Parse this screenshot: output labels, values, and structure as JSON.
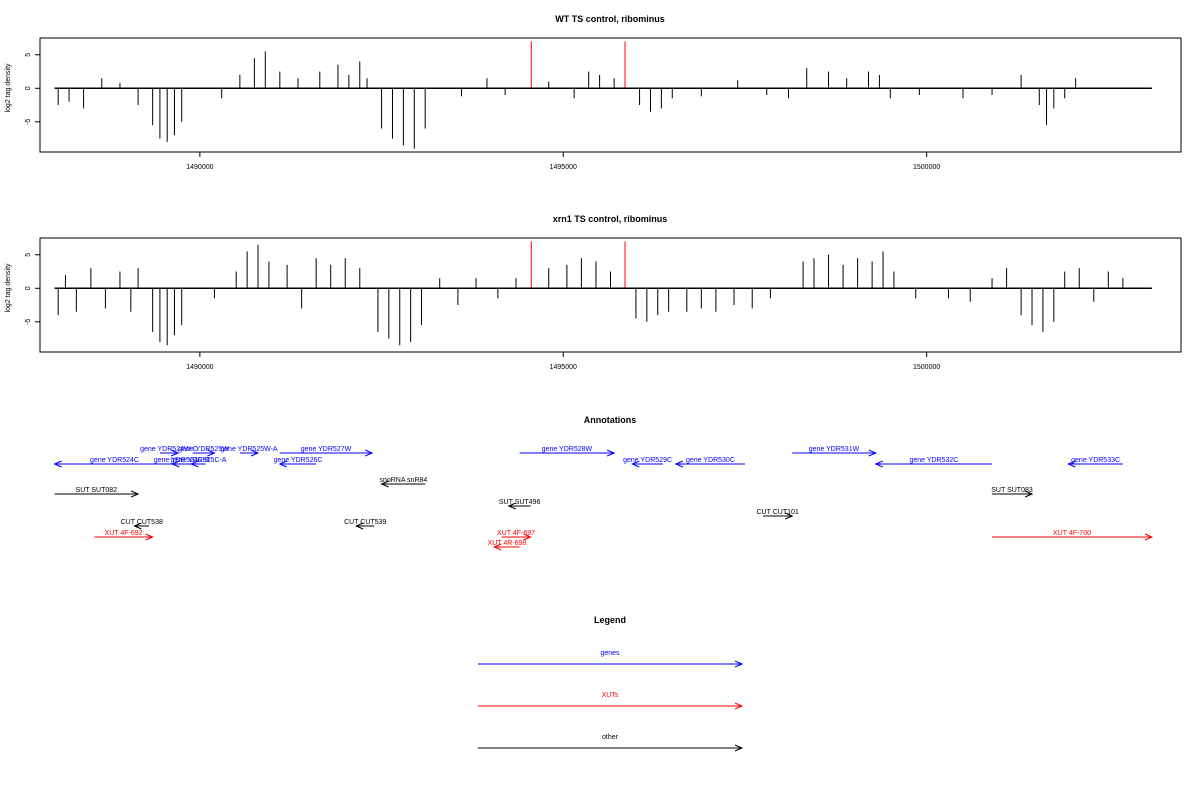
{
  "chart_data": [
    {
      "type": "bar",
      "title": "WT TS control, ribominus",
      "ylabel": "log2 tag density",
      "xlabel": "",
      "xlim": [
        1487800,
        1503500
      ],
      "ylim": [
        -9.5,
        7.5
      ],
      "x_ticks": [
        1490000,
        1495000,
        1500000
      ],
      "x_tick_labels": [
        "1490000",
        "1495000",
        "1500000"
      ],
      "y_ticks": [
        -5,
        0,
        5
      ],
      "y_tick_labels": [
        "-5",
        "0",
        "5"
      ],
      "series": [
        {
          "color": "#000000",
          "values": [
            [
              1488050,
              -2.5
            ],
            [
              1488200,
              -2.0
            ],
            [
              1488400,
              -3.0
            ],
            [
              1488650,
              1.5
            ],
            [
              1488900,
              0.8
            ],
            [
              1489150,
              -2.5
            ],
            [
              1489350,
              -5.5
            ],
            [
              1489450,
              -7.5
            ],
            [
              1489550,
              -8.0
            ],
            [
              1489650,
              -7.0
            ],
            [
              1489750,
              -5.0
            ],
            [
              1490300,
              -1.5
            ],
            [
              1490550,
              2.0
            ],
            [
              1490750,
              4.5
            ],
            [
              1490900,
              5.5
            ],
            [
              1491100,
              2.5
            ],
            [
              1491350,
              1.5
            ],
            [
              1491650,
              2.5
            ],
            [
              1491900,
              3.5
            ],
            [
              1492050,
              2.0
            ],
            [
              1492200,
              4.0
            ],
            [
              1492300,
              1.5
            ],
            [
              1492500,
              -6.0
            ],
            [
              1492650,
              -7.5
            ],
            [
              1492800,
              -8.5
            ],
            [
              1492950,
              -9.0
            ],
            [
              1493100,
              -6.0
            ],
            [
              1493600,
              -1.2
            ],
            [
              1493950,
              1.5
            ],
            [
              1494200,
              -1.0
            ],
            [
              1494800,
              1.0
            ],
            [
              1495150,
              -1.5
            ],
            [
              1495350,
              2.5
            ],
            [
              1495500,
              2.0
            ],
            [
              1495700,
              1.5
            ],
            [
              1496050,
              -2.5
            ],
            [
              1496200,
              -3.5
            ],
            [
              1496350,
              -3.0
            ],
            [
              1496500,
              -1.5
            ],
            [
              1496900,
              -1.2
            ],
            [
              1497400,
              1.2
            ],
            [
              1497800,
              -1.0
            ],
            [
              1498100,
              -1.5
            ],
            [
              1498350,
              3.0
            ],
            [
              1498650,
              2.5
            ],
            [
              1498900,
              1.5
            ],
            [
              1499200,
              2.5
            ],
            [
              1499350,
              2.0
            ],
            [
              1499500,
              -1.5
            ],
            [
              1499900,
              -1.0
            ],
            [
              1500500,
              -1.5
            ],
            [
              1500900,
              -1.0
            ],
            [
              1501300,
              2.0
            ],
            [
              1501550,
              -2.5
            ],
            [
              1501650,
              -5.5
            ],
            [
              1501750,
              -3.0
            ],
            [
              1501900,
              -1.5
            ],
            [
              1502050,
              1.5
            ]
          ]
        },
        {
          "color": "#ff0000",
          "values": [
            [
              1494560,
              7.0
            ],
            [
              1495850,
              7.0
            ]
          ]
        }
      ]
    },
    {
      "type": "bar",
      "title": "xrn1 TS control, ribominus",
      "ylabel": "log2 tag density",
      "xlabel": "",
      "xlim": [
        1487800,
        1503500
      ],
      "ylim": [
        -9.5,
        7.5
      ],
      "x_ticks": [
        1490000,
        1495000,
        1500000
      ],
      "x_tick_labels": [
        "1490000",
        "1495000",
        "1500000"
      ],
      "y_ticks": [
        -5,
        0,
        5
      ],
      "y_tick_labels": [
        "-5",
        "0",
        "5"
      ],
      "series": [
        {
          "color": "#000000",
          "values": [
            [
              1488050,
              -4.0
            ],
            [
              1488150,
              2.0
            ],
            [
              1488300,
              -3.5
            ],
            [
              1488500,
              3.0
            ],
            [
              1488700,
              -3.0
            ],
            [
              1488900,
              2.5
            ],
            [
              1489050,
              -3.5
            ],
            [
              1489150,
              3.0
            ],
            [
              1489350,
              -6.5
            ],
            [
              1489450,
              -8.0
            ],
            [
              1489550,
              -8.5
            ],
            [
              1489650,
              -7.0
            ],
            [
              1489750,
              -5.5
            ],
            [
              1490200,
              -1.5
            ],
            [
              1490500,
              2.5
            ],
            [
              1490650,
              5.5
            ],
            [
              1490800,
              6.5
            ],
            [
              1490950,
              4.0
            ],
            [
              1491200,
              3.5
            ],
            [
              1491400,
              -3.0
            ],
            [
              1491600,
              4.5
            ],
            [
              1491800,
              3.5
            ],
            [
              1492000,
              4.5
            ],
            [
              1492200,
              3.0
            ],
            [
              1492450,
              -6.5
            ],
            [
              1492600,
              -7.5
            ],
            [
              1492750,
              -8.5
            ],
            [
              1492900,
              -8.0
            ],
            [
              1493050,
              -5.5
            ],
            [
              1493300,
              1.5
            ],
            [
              1493550,
              -2.5
            ],
            [
              1493800,
              1.5
            ],
            [
              1494100,
              -1.5
            ],
            [
              1494350,
              1.5
            ],
            [
              1494800,
              3.0
            ],
            [
              1495050,
              3.5
            ],
            [
              1495250,
              4.5
            ],
            [
              1495450,
              4.0
            ],
            [
              1495650,
              2.5
            ],
            [
              1496000,
              -4.5
            ],
            [
              1496150,
              -5.0
            ],
            [
              1496300,
              -4.0
            ],
            [
              1496450,
              -3.5
            ],
            [
              1496700,
              -3.5
            ],
            [
              1496900,
              -3.0
            ],
            [
              1497100,
              -3.5
            ],
            [
              1497350,
              -2.5
            ],
            [
              1497600,
              -3.0
            ],
            [
              1497850,
              -1.5
            ],
            [
              1498300,
              4.0
            ],
            [
              1498450,
              4.5
            ],
            [
              1498650,
              5.0
            ],
            [
              1498850,
              3.5
            ],
            [
              1499050,
              4.5
            ],
            [
              1499250,
              4.0
            ],
            [
              1499400,
              5.5
            ],
            [
              1499550,
              2.5
            ],
            [
              1499850,
              -1.5
            ],
            [
              1500300,
              -1.5
            ],
            [
              1500600,
              -2.0
            ],
            [
              1500900,
              1.5
            ],
            [
              1501100,
              3.0
            ],
            [
              1501300,
              -4.0
            ],
            [
              1501450,
              -5.5
            ],
            [
              1501600,
              -6.5
            ],
            [
              1501750,
              -5.0
            ],
            [
              1501900,
              2.5
            ],
            [
              1502100,
              3.0
            ],
            [
              1502300,
              -2.0
            ],
            [
              1502500,
              2.5
            ],
            [
              1502700,
              1.5
            ]
          ]
        },
        {
          "color": "#ff0000",
          "values": [
            [
              1494560,
              7.0
            ],
            [
              1495850,
              7.0
            ]
          ]
        }
      ]
    }
  ],
  "annotations": {
    "title": "Annotations",
    "colors": {
      "genes": "#0000ff",
      "XUTs": "#ff0000",
      "other": "#000000"
    },
    "features": [
      {
        "label": "gene YDR524C",
        "class": "genes",
        "start": 1488000,
        "end": 1489650,
        "strand": "-",
        "row": 1
      },
      {
        "label": "gene YDR524W-C",
        "class": "genes",
        "start": 1489450,
        "end": 1489700,
        "strand": "+",
        "row": 0
      },
      {
        "label": "gene YDR524C-B",
        "class": "genes",
        "start": 1489620,
        "end": 1489880,
        "strand": "-",
        "row": 1
      },
      {
        "label": "gene YDR525W",
        "class": "genes",
        "start": 1489900,
        "end": 1490200,
        "strand": "+",
        "row": 0
      },
      {
        "label": "gene YDR525C-A",
        "class": "genes",
        "start": 1489880,
        "end": 1490080,
        "strand": "-",
        "row": 1
      },
      {
        "label": "gene YDR525W-A",
        "class": "genes",
        "start": 1490550,
        "end": 1490800,
        "strand": "+",
        "row": 0
      },
      {
        "label": "gene YDR526C",
        "class": "genes",
        "start": 1491100,
        "end": 1491600,
        "strand": "-",
        "row": 1
      },
      {
        "label": "gene YDR527W",
        "class": "genes",
        "start": 1491100,
        "end": 1492370,
        "strand": "+",
        "row": 0
      },
      {
        "label": "gene YDR528W",
        "class": "genes",
        "start": 1494400,
        "end": 1495700,
        "strand": "+",
        "row": 0
      },
      {
        "label": "gene YDR529C",
        "class": "genes",
        "start": 1495950,
        "end": 1496370,
        "strand": "-",
        "row": 1
      },
      {
        "label": "gene YDR530C",
        "class": "genes",
        "start": 1496550,
        "end": 1497500,
        "strand": "-",
        "row": 1
      },
      {
        "label": "gene YDR531W",
        "class": "genes",
        "start": 1498150,
        "end": 1499300,
        "strand": "+",
        "row": 0
      },
      {
        "label": "gene YDR532C",
        "class": "genes",
        "start": 1499300,
        "end": 1500900,
        "strand": "-",
        "row": 1
      },
      {
        "label": "gene YDR533C",
        "class": "genes",
        "start": 1501950,
        "end": 1502700,
        "strand": "-",
        "row": 1
      },
      {
        "label": "snoRNA snR84",
        "class": "other",
        "start": 1492500,
        "end": 1493100,
        "strand": "-",
        "row": 2
      },
      {
        "label": "SUT SUT082",
        "class": "other",
        "start": 1488000,
        "end": 1489150,
        "strand": "+",
        "row": 3
      },
      {
        "label": "SUT SUT496",
        "class": "other",
        "start": 1494250,
        "end": 1494550,
        "strand": "-",
        "row": 4
      },
      {
        "label": "SUT SUT083",
        "class": "other",
        "start": 1500900,
        "end": 1501450,
        "strand": "+",
        "row": 3
      },
      {
        "label": "CUT CUT101",
        "class": "other",
        "start": 1497750,
        "end": 1498150,
        "strand": "+",
        "row": 5
      },
      {
        "label": "CUT CUT538",
        "class": "other",
        "start": 1489100,
        "end": 1489300,
        "strand": "-",
        "row": 6
      },
      {
        "label": "CUT CUT539",
        "class": "other",
        "start": 1492150,
        "end": 1492400,
        "strand": "-",
        "row": 6
      },
      {
        "label": "XUT 4F-692",
        "class": "XUTs",
        "start": 1488550,
        "end": 1489350,
        "strand": "+",
        "row": 7
      },
      {
        "label": "XUT 4F-697",
        "class": "XUTs",
        "start": 1494150,
        "end": 1494550,
        "strand": "+",
        "row": 7
      },
      {
        "label": "XUT 4R-698",
        "class": "XUTs",
        "start": 1494050,
        "end": 1494400,
        "strand": "-",
        "row": 8
      },
      {
        "label": "XUT 4F-700",
        "class": "XUTs",
        "start": 1500900,
        "end": 1503100,
        "strand": "+",
        "row": 7
      }
    ]
  },
  "legend": {
    "title": "Legend",
    "items": [
      {
        "label": "genes",
        "color": "#0000ff"
      },
      {
        "label": "XUTs",
        "color": "#ff0000"
      },
      {
        "label": "other",
        "color": "#000000"
      }
    ]
  }
}
